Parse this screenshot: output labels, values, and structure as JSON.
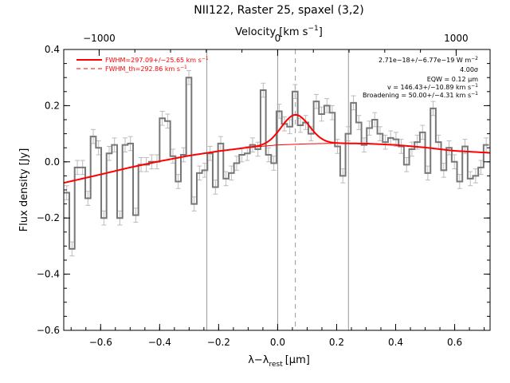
{
  "chart_data": {
    "type": "line",
    "title": "NII122, Raster 25, spaxel (3,2)",
    "xlabel_main": "λ−λ",
    "xlabel_sub": "rest",
    "xlabel_unit": "[μm]",
    "top_xlabel": "Velocity [km s",
    "top_xlabel_sup": "−1",
    "top_xlabel_end": "]",
    "ylabel": "Flux density [Jy]",
    "xlim": [
      -0.725,
      0.72
    ],
    "ylim": [
      -0.6,
      0.4
    ],
    "x_ticks": [
      -0.6,
      -0.4,
      -0.2,
      0.0,
      0.2,
      0.4,
      0.6
    ],
    "x_tick_labels": [
      "−0.6",
      "−0.4",
      "−0.2",
      "0.0",
      "0.2",
      "0.4",
      "0.6"
    ],
    "y_ticks": [
      -0.6,
      -0.4,
      -0.2,
      0.0,
      0.2,
      0.4
    ],
    "y_tick_labels": [
      "−0.6",
      "−0.4",
      "−0.2",
      "0.0",
      "0.2",
      "0.4"
    ],
    "top_ticks_velocity": [
      -1000,
      0,
      1000
    ],
    "top_tick_labels": [
      "−1000",
      "0",
      "1000"
    ],
    "top_tick_x_positions": [
      -0.605,
      0.0,
      0.605
    ],
    "vertical_lines_solid": [
      -0.24,
      0.0,
      0.24
    ],
    "vertical_line_dashed": 0.06,
    "zero_line": 0.0,
    "data_step": {
      "x": [
        -0.715,
        -0.697,
        -0.679,
        -0.661,
        -0.643,
        -0.625,
        -0.607,
        -0.589,
        -0.571,
        -0.553,
        -0.535,
        -0.517,
        -0.499,
        -0.481,
        -0.463,
        -0.445,
        -0.427,
        -0.409,
        -0.391,
        -0.373,
        -0.355,
        -0.337,
        -0.319,
        -0.301,
        -0.283,
        -0.265,
        -0.247,
        -0.229,
        -0.211,
        -0.193,
        -0.175,
        -0.157,
        -0.139,
        -0.121,
        -0.103,
        -0.085,
        -0.067,
        -0.049,
        -0.031,
        -0.013,
        0.005,
        0.023,
        0.041,
        0.059,
        0.077,
        0.095,
        0.113,
        0.131,
        0.149,
        0.167,
        0.185,
        0.203,
        0.221,
        0.239,
        0.257,
        0.275,
        0.293,
        0.311,
        0.329,
        0.347,
        0.365,
        0.383,
        0.401,
        0.419,
        0.437,
        0.455,
        0.473,
        0.491,
        0.509,
        0.527,
        0.545,
        0.563,
        0.581,
        0.599,
        0.617,
        0.635,
        0.653,
        0.671,
        0.689,
        0.707
      ],
      "y": [
        -0.11,
        -0.31,
        -0.02,
        -0.02,
        -0.13,
        0.09,
        0.05,
        -0.2,
        0.03,
        0.06,
        -0.2,
        0.06,
        0.065,
        -0.19,
        -0.01,
        -0.01,
        0.0,
        0.0,
        0.155,
        0.145,
        0.02,
        -0.07,
        0.025,
        0.3,
        -0.15,
        -0.04,
        -0.03,
        0.03,
        -0.09,
        0.065,
        -0.06,
        -0.04,
        -0.005,
        0.025,
        0.03,
        0.06,
        0.045,
        0.255,
        0.025,
        -0.005,
        0.18,
        0.135,
        0.125,
        0.25,
        0.13,
        0.14,
        0.1,
        0.215,
        0.17,
        0.2,
        0.175,
        0.055,
        -0.05,
        0.1,
        0.21,
        0.14,
        0.06,
        0.12,
        0.15,
        0.1,
        0.07,
        0.085,
        0.08,
        0.055,
        -0.01,
        0.045,
        0.07,
        0.105,
        -0.04,
        0.19,
        0.07,
        -0.03,
        0.05,
        0.0,
        -0.07,
        0.055,
        -0.06,
        -0.05,
        -0.02,
        0.06
      ],
      "error": 0.025
    },
    "fit_continuum": {
      "x": [
        -0.725,
        -0.6,
        -0.5,
        -0.4,
        -0.3,
        -0.2,
        -0.1,
        0.0,
        0.1,
        0.2,
        0.3,
        0.4,
        0.5,
        0.6,
        0.72
      ],
      "y": [
        -0.075,
        -0.045,
        -0.02,
        0.002,
        0.022,
        0.038,
        0.051,
        0.06,
        0.064,
        0.066,
        0.065,
        0.06,
        0.051,
        0.039,
        0.032
      ]
    },
    "fit_line": {
      "center": 0.06,
      "amplitude": 0.105,
      "sigma": 0.047
    },
    "legend": [
      {
        "label": "FWHM=297.09+/−25.65 km s",
        "sup": "−1",
        "style": "solid",
        "color": "#ff0000"
      },
      {
        "label": "FWHM_th=292.86 km s",
        "sup": "−1",
        "style": "dashed",
        "color": "#ff0000"
      }
    ],
    "annotations": [
      {
        "text": "2.71e−18+/−6.77e−19 W m",
        "sup": "−2"
      },
      {
        "text": "4.00σ",
        "sup": ""
      },
      {
        "text": "EQW = 0.12 μm",
        "sup": ""
      },
      {
        "text": "v = 146.43+/−10.89 km s",
        "sup": "−1"
      },
      {
        "text": "Broadening = 50.00+/−4.31 km s",
        "sup": "−1"
      }
    ],
    "colors": {
      "data": "#777777",
      "fit": "#ff0000",
      "grid_lines": "#999999",
      "axes": "#000000"
    }
  }
}
